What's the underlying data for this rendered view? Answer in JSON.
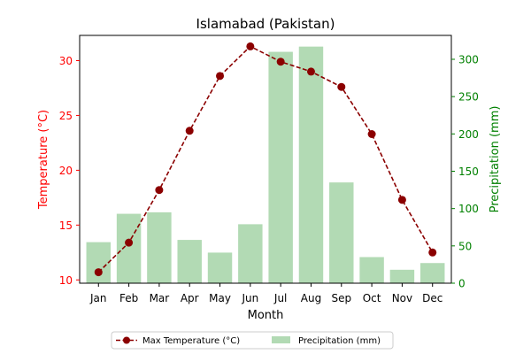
{
  "chart_data": {
    "type": "bar",
    "title": "Islamabad (Pakistan)",
    "xlabel": "Month",
    "ylabel_left": "Temperature (°C)",
    "ylabel_right": "Precipitation (mm)",
    "categories": [
      "Jan",
      "Feb",
      "Mar",
      "Apr",
      "May",
      "Jun",
      "Jul",
      "Aug",
      "Sep",
      "Oct",
      "Nov",
      "Dec"
    ],
    "series": [
      {
        "name": "Max Temperature (°C)",
        "type": "line",
        "axis": "left",
        "values": [
          10.7,
          13.4,
          18.2,
          23.6,
          28.6,
          31.3,
          29.9,
          29.0,
          27.6,
          23.3,
          17.3,
          12.5
        ]
      },
      {
        "name": "Precipitation (mm)",
        "type": "bar",
        "axis": "right",
        "values": [
          55,
          93,
          95,
          58,
          41,
          79,
          310,
          317,
          135,
          35,
          18,
          27
        ]
      }
    ],
    "ylim_left": [
      9.7,
      32.3
    ],
    "yticks_left": [
      10,
      15,
      20,
      25,
      30
    ],
    "ylim_right": [
      0,
      332
    ],
    "yticks_right": [
      0,
      50,
      100,
      150,
      200,
      250,
      300
    ],
    "grid": false,
    "legend_position": "bottom-center",
    "colors": {
      "temperature": "#8b0000",
      "precipitation": "#b2dab4",
      "left_axis": "#ff0000",
      "right_axis": "#008000"
    }
  }
}
